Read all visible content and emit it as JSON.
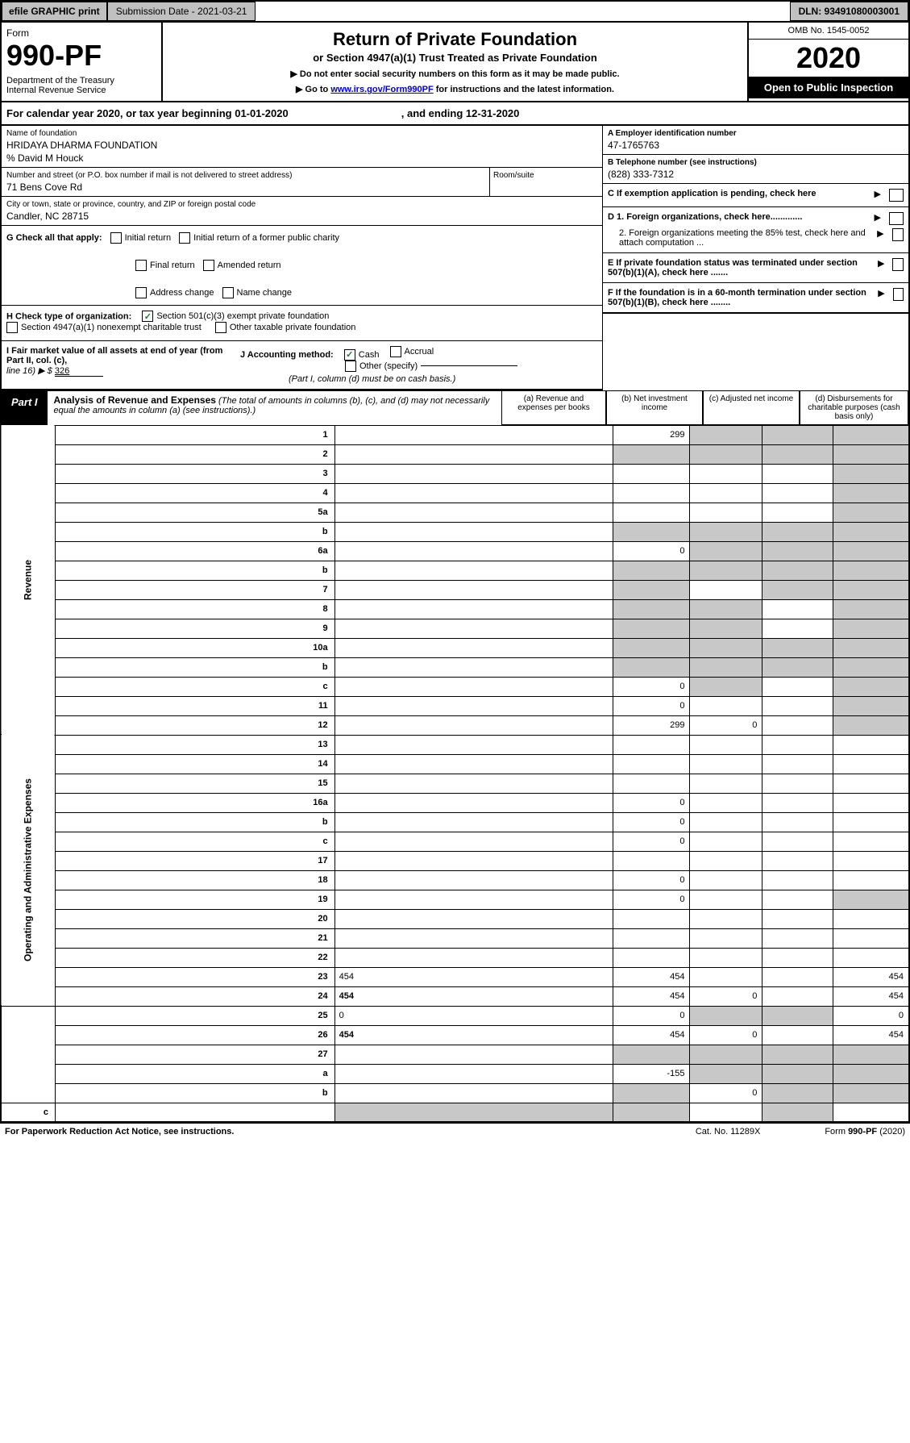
{
  "topbar": {
    "efile": "efile GRAPHIC print",
    "submission": "Submission Date - 2021-03-21",
    "dln": "DLN: 93491080003001"
  },
  "header": {
    "form_word": "Form",
    "form_num": "990-PF",
    "dept": "Department of the Treasury\nInternal Revenue Service",
    "title": "Return of Private Foundation",
    "subtitle": "or Section 4947(a)(1) Trust Treated as Private Foundation",
    "note1": "▶ Do not enter social security numbers on this form as it may be made public.",
    "note2_prefix": "▶ Go to ",
    "note2_link": "www.irs.gov/Form990PF",
    "note2_suffix": " for instructions and the latest information.",
    "omb": "OMB No. 1545-0052",
    "year": "2020",
    "open": "Open to Public Inspection"
  },
  "calendar": {
    "text": "For calendar year 2020, or tax year beginning 01-01-2020",
    "ending": ", and ending 12-31-2020"
  },
  "foundation": {
    "name_label": "Name of foundation",
    "name": "HRIDAYA DHARMA FOUNDATION",
    "care_of": "% David M Houck",
    "addr_label": "Number and street (or P.O. box number if mail is not delivered to street address)",
    "addr": "71 Bens Cove Rd",
    "room_label": "Room/suite",
    "city_label": "City or town, state or province, country, and ZIP or foreign postal code",
    "city": "Candler, NC  28715"
  },
  "right_info": {
    "a_label": "A Employer identification number",
    "a_val": "47-1765763",
    "b_label": "B Telephone number (see instructions)",
    "b_val": "(828) 333-7312",
    "c_label": "C If exemption application is pending, check here",
    "d1": "D 1. Foreign organizations, check here.............",
    "d2": "2. Foreign organizations meeting the 85% test, check here and attach computation ...",
    "e": "E  If private foundation status was terminated under section 507(b)(1)(A), check here .......",
    "f": "F  If the foundation is in a 60-month termination under section 507(b)(1)(B), check here ........"
  },
  "sec_g": {
    "label": "G Check all that apply:",
    "opts": [
      "Initial return",
      "Initial return of a former public charity",
      "Final return",
      "Amended return",
      "Address change",
      "Name change"
    ]
  },
  "sec_h": {
    "label": "H Check type of organization:",
    "opt1": "Section 501(c)(3) exempt private foundation",
    "opt2": "Section 4947(a)(1) nonexempt charitable trust",
    "opt3": "Other taxable private foundation"
  },
  "sec_i": {
    "label": "I Fair market value of all assets at end of year (from Part II, col. (c),",
    "line": "line 16) ▶ $",
    "val": "326"
  },
  "sec_j": {
    "label": "J Accounting method:",
    "cash": "Cash",
    "accrual": "Accrual",
    "other": "Other (specify)",
    "note": "(Part I, column (d) must be on cash basis.)"
  },
  "part1": {
    "label": "Part I",
    "title": "Analysis of Revenue and Expenses",
    "desc": "(The total of amounts in columns (b), (c), and (d) may not necessarily equal the amounts in column (a) (see instructions).)",
    "col_a": "(a)   Revenue and expenses per books",
    "col_b": "(b)  Net investment income",
    "col_c": "(c)  Adjusted net income",
    "col_d": "(d)  Disbursements for charitable purposes (cash basis only)"
  },
  "side_labels": {
    "rev": "Revenue",
    "exp": "Operating and Administrative Expenses"
  },
  "rows": [
    {
      "n": "1",
      "d": "",
      "a": "299",
      "b": "",
      "c": "",
      "sb": true,
      "sc": true,
      "sd": true
    },
    {
      "n": "2",
      "d": "",
      "a": "",
      "b": "",
      "c": "",
      "sa": true,
      "sb": true,
      "sc": true,
      "sd": true,
      "bold_not": true
    },
    {
      "n": "3",
      "d": "",
      "a": "",
      "b": "",
      "c": "",
      "sd": true
    },
    {
      "n": "4",
      "d": "",
      "a": "",
      "b": "",
      "c": "",
      "sd": true
    },
    {
      "n": "5a",
      "d": "",
      "a": "",
      "b": "",
      "c": "",
      "sd": true
    },
    {
      "n": "b",
      "d": "",
      "a": "",
      "b": "",
      "c": "",
      "sa": true,
      "sb": true,
      "sc": true,
      "sd": true,
      "line": true
    },
    {
      "n": "6a",
      "d": "",
      "a": "0",
      "b": "",
      "c": "",
      "sb": true,
      "sc": true,
      "sd": true
    },
    {
      "n": "b",
      "d": "",
      "a": "",
      "b": "",
      "c": "",
      "sa": true,
      "sb": true,
      "sc": true,
      "sd": true,
      "line": true
    },
    {
      "n": "7",
      "d": "",
      "a": "",
      "b": "",
      "c": "",
      "sa": true,
      "sc": true,
      "sd": true
    },
    {
      "n": "8",
      "d": "",
      "a": "",
      "b": "",
      "c": "",
      "sa": true,
      "sb": true,
      "sd": true
    },
    {
      "n": "9",
      "d": "",
      "a": "",
      "b": "",
      "c": "",
      "sa": true,
      "sb": true,
      "sd": true
    },
    {
      "n": "10a",
      "d": "",
      "a": "",
      "b": "",
      "c": "",
      "sa": true,
      "sb": true,
      "sc": true,
      "sd": true,
      "line": true
    },
    {
      "n": "b",
      "d": "",
      "a": "",
      "b": "",
      "c": "",
      "sa": true,
      "sb": true,
      "sc": true,
      "sd": true,
      "line": true
    },
    {
      "n": "c",
      "d": "",
      "a": "0",
      "b": "",
      "c": "",
      "sb": true,
      "sd": true
    },
    {
      "n": "11",
      "d": "",
      "a": "0",
      "b": "",
      "c": "",
      "sd": true
    },
    {
      "n": "12",
      "d": "",
      "a": "299",
      "b": "0",
      "c": "",
      "sd": true,
      "bold": true
    },
    {
      "n": "13",
      "d": "",
      "a": "",
      "b": "",
      "c": ""
    },
    {
      "n": "14",
      "d": "",
      "a": "",
      "b": "",
      "c": ""
    },
    {
      "n": "15",
      "d": "",
      "a": "",
      "b": "",
      "c": ""
    },
    {
      "n": "16a",
      "d": "",
      "a": "0",
      "b": "",
      "c": ""
    },
    {
      "n": "b",
      "d": "",
      "a": "0",
      "b": "",
      "c": ""
    },
    {
      "n": "c",
      "d": "",
      "a": "0",
      "b": "",
      "c": ""
    },
    {
      "n": "17",
      "d": "",
      "a": "",
      "b": "",
      "c": ""
    },
    {
      "n": "18",
      "d": "",
      "a": "0",
      "b": "",
      "c": ""
    },
    {
      "n": "19",
      "d": "",
      "a": "0",
      "b": "",
      "c": "",
      "sd": true
    },
    {
      "n": "20",
      "d": "",
      "a": "",
      "b": "",
      "c": ""
    },
    {
      "n": "21",
      "d": "",
      "a": "",
      "b": "",
      "c": ""
    },
    {
      "n": "22",
      "d": "",
      "a": "",
      "b": "",
      "c": ""
    },
    {
      "n": "23",
      "d": "454",
      "a": "454",
      "b": "",
      "c": ""
    },
    {
      "n": "24",
      "d": "454",
      "a": "454",
      "b": "0",
      "c": "",
      "bold": true
    },
    {
      "n": "25",
      "d": "0",
      "a": "0",
      "b": "",
      "c": "",
      "sb": true,
      "sc": true
    },
    {
      "n": "26",
      "d": "454",
      "a": "454",
      "b": "0",
      "c": "",
      "bold": true
    },
    {
      "n": "27",
      "d": "",
      "a": "",
      "b": "",
      "c": "",
      "sa": true,
      "sb": true,
      "sc": true,
      "sd": true
    },
    {
      "n": "a",
      "d": "",
      "a": "-155",
      "b": "",
      "c": "",
      "sb": true,
      "sc": true,
      "sd": true,
      "bold": true
    },
    {
      "n": "b",
      "d": "",
      "a": "",
      "b": "0",
      "c": "",
      "sa": true,
      "sc": true,
      "sd": true,
      "bold": true
    },
    {
      "n": "c",
      "d": "",
      "a": "",
      "b": "",
      "c": "",
      "sa": true,
      "sb": true,
      "sd": true,
      "bold": true
    }
  ],
  "footer": {
    "left": "For Paperwork Reduction Act Notice, see instructions.",
    "cat": "Cat. No. 11289X",
    "form": "Form 990-PF (2020)"
  }
}
